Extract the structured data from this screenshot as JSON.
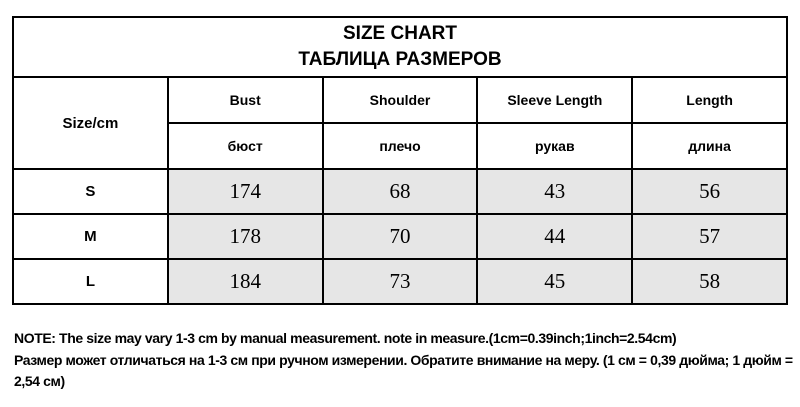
{
  "title": {
    "en": "SIZE CHART",
    "ru": "ТАБЛИЦА РАЗМЕРОВ"
  },
  "size_header": "Size/cm",
  "columns": [
    {
      "en": "Bust",
      "ru": "бюст"
    },
    {
      "en": "Shoulder",
      "ru": "плечо"
    },
    {
      "en": "Sleeve Length",
      "ru": "рукав"
    },
    {
      "en": "Length",
      "ru": "длина"
    }
  ],
  "rows": [
    {
      "size": "S",
      "values": [
        "174",
        "68",
        "43",
        "56"
      ]
    },
    {
      "size": "M",
      "values": [
        "178",
        "70",
        "44",
        "57"
      ]
    },
    {
      "size": "L",
      "values": [
        "184",
        "73",
        "45",
        "58"
      ]
    }
  ],
  "note": {
    "en": "NOTE:  The size may vary 1-3 cm by manual measurement. note in measure.(1cm=0.39inch;1inch=2.54cm)",
    "ru": "Размер может отличаться на 1-3 см при ручном измерении. Обратите внимание на меру. (1 см = 0,39 дюйма; 1 дюйм = 2,54 см)"
  },
  "colors": {
    "value_cell_bg": "#e6e6e6",
    "border": "#000000"
  }
}
